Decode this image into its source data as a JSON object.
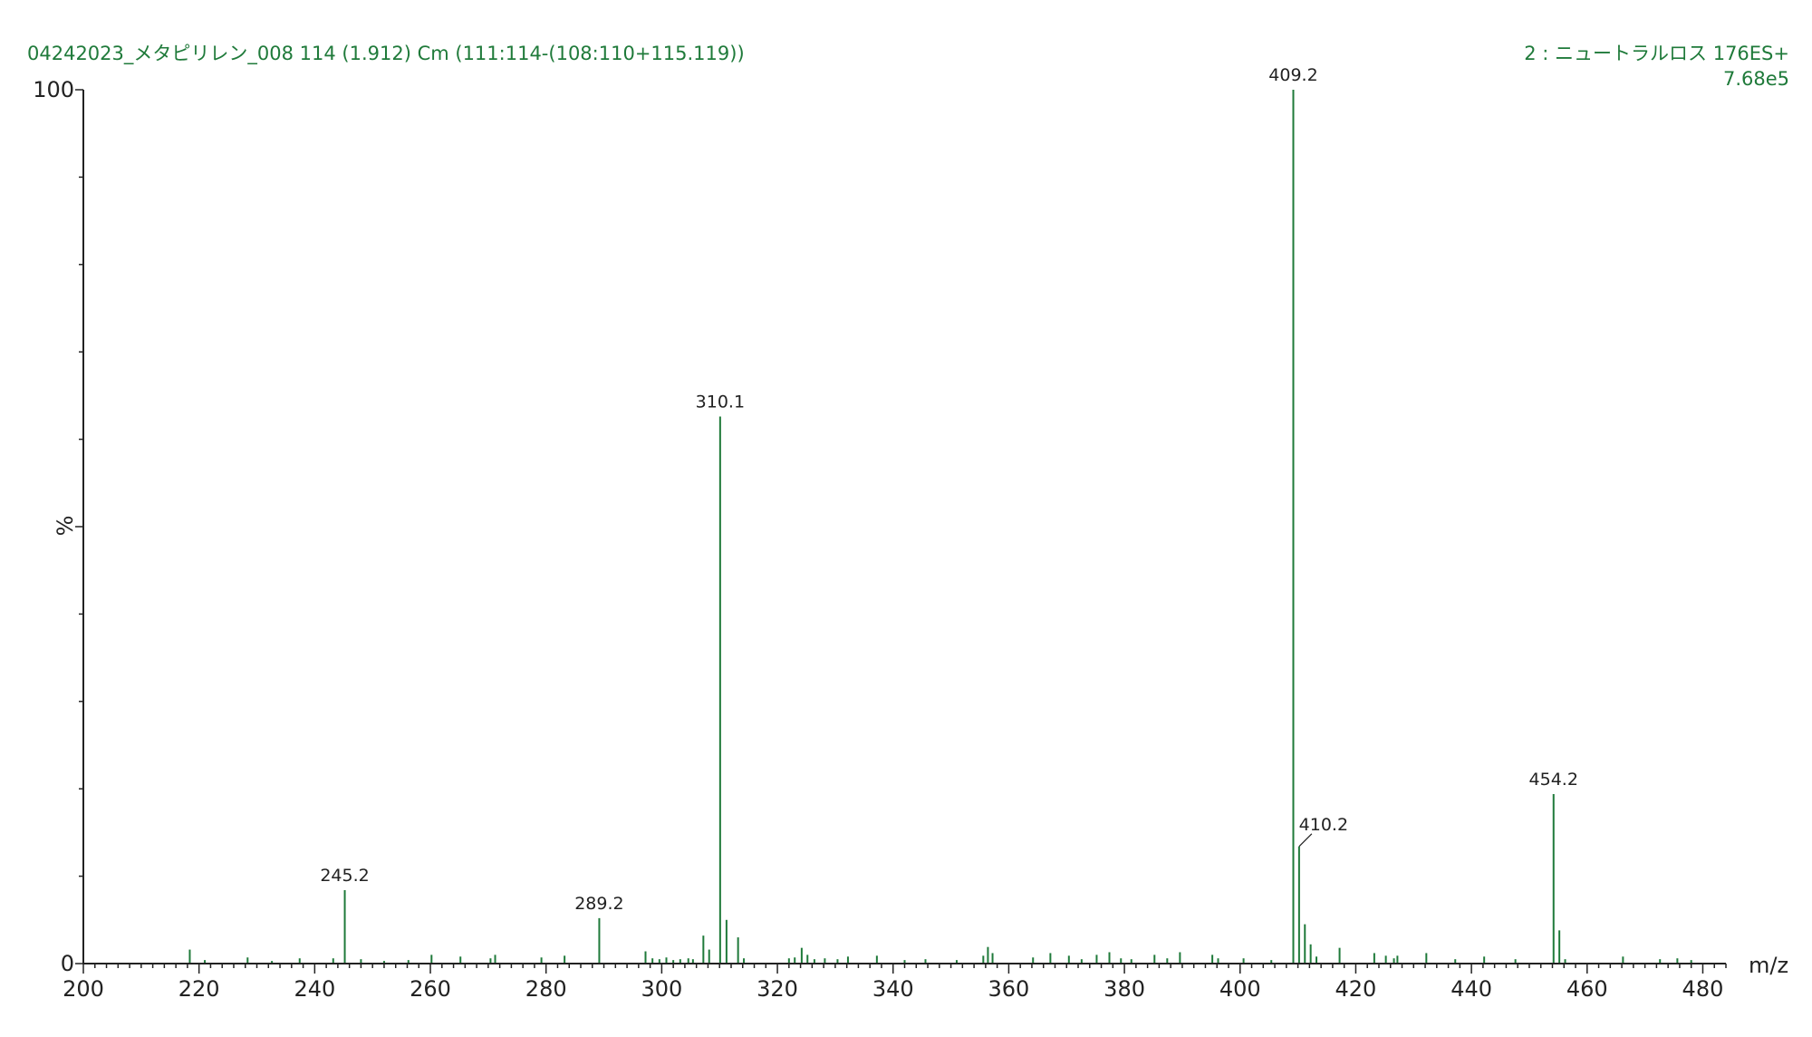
{
  "colors": {
    "trace": "#1f7a3a",
    "axis": "#222222",
    "header": "#1f7a3a"
  },
  "chart_data": {
    "type": "bar",
    "title": "04242023_メタピリレン_008 114 (1.912) Cm (111:114-(108:110+115.119))",
    "function_label": "2 : ニュートラルロス 176ES+",
    "intensity_label": "7.68e5",
    "xlabel": "m/z",
    "ylabel": "%",
    "xlim": [
      200,
      484
    ],
    "ylim": [
      0,
      100
    ],
    "x_ticks": [
      200,
      220,
      240,
      260,
      280,
      300,
      320,
      340,
      360,
      380,
      400,
      420,
      440,
      460,
      480
    ],
    "y_ticks": [
      0,
      100
    ],
    "peaks": [
      {
        "mz": 218.4,
        "rel": 1.6
      },
      {
        "mz": 221.0,
        "rel": 0.4
      },
      {
        "mz": 228.4,
        "rel": 0.7
      },
      {
        "mz": 232.6,
        "rel": 0.3
      },
      {
        "mz": 237.4,
        "rel": 0.6
      },
      {
        "mz": 243.2,
        "rel": 0.6
      },
      {
        "mz": 245.2,
        "rel": 8.4,
        "label": "245.2"
      },
      {
        "mz": 248.0,
        "rel": 0.5
      },
      {
        "mz": 252.0,
        "rel": 0.3
      },
      {
        "mz": 256.2,
        "rel": 0.4
      },
      {
        "mz": 260.2,
        "rel": 1.0
      },
      {
        "mz": 265.2,
        "rel": 0.8
      },
      {
        "mz": 270.4,
        "rel": 0.6
      },
      {
        "mz": 271.2,
        "rel": 1.0
      },
      {
        "mz": 279.2,
        "rel": 0.7
      },
      {
        "mz": 283.2,
        "rel": 0.9
      },
      {
        "mz": 289.2,
        "rel": 5.2,
        "label": "289.2"
      },
      {
        "mz": 297.2,
        "rel": 1.4
      },
      {
        "mz": 298.4,
        "rel": 0.6
      },
      {
        "mz": 299.6,
        "rel": 0.5
      },
      {
        "mz": 300.8,
        "rel": 0.7
      },
      {
        "mz": 302.0,
        "rel": 0.4
      },
      {
        "mz": 303.2,
        "rel": 0.5
      },
      {
        "mz": 304.6,
        "rel": 0.6
      },
      {
        "mz": 305.4,
        "rel": 0.5
      },
      {
        "mz": 307.2,
        "rel": 3.2
      },
      {
        "mz": 308.2,
        "rel": 1.6
      },
      {
        "mz": 310.1,
        "rel": 62.6,
        "label": "310.1"
      },
      {
        "mz": 311.2,
        "rel": 5.0
      },
      {
        "mz": 313.2,
        "rel": 3.0
      },
      {
        "mz": 314.2,
        "rel": 0.6
      },
      {
        "mz": 322.0,
        "rel": 0.6
      },
      {
        "mz": 323.0,
        "rel": 0.7
      },
      {
        "mz": 324.2,
        "rel": 1.8
      },
      {
        "mz": 325.2,
        "rel": 1.0
      },
      {
        "mz": 326.4,
        "rel": 0.5
      },
      {
        "mz": 328.2,
        "rel": 0.6
      },
      {
        "mz": 330.4,
        "rel": 0.5
      },
      {
        "mz": 332.2,
        "rel": 0.8
      },
      {
        "mz": 337.2,
        "rel": 0.9
      },
      {
        "mz": 342.0,
        "rel": 0.4
      },
      {
        "mz": 345.6,
        "rel": 0.5
      },
      {
        "mz": 351.0,
        "rel": 0.4
      },
      {
        "mz": 355.6,
        "rel": 0.9
      },
      {
        "mz": 356.4,
        "rel": 1.9
      },
      {
        "mz": 357.2,
        "rel": 1.2
      },
      {
        "mz": 364.2,
        "rel": 0.7
      },
      {
        "mz": 367.2,
        "rel": 1.2
      },
      {
        "mz": 370.4,
        "rel": 0.9
      },
      {
        "mz": 372.6,
        "rel": 0.5
      },
      {
        "mz": 375.2,
        "rel": 1.0
      },
      {
        "mz": 377.4,
        "rel": 1.3
      },
      {
        "mz": 379.4,
        "rel": 0.6
      },
      {
        "mz": 381.2,
        "rel": 0.5
      },
      {
        "mz": 385.2,
        "rel": 1.0
      },
      {
        "mz": 387.4,
        "rel": 0.6
      },
      {
        "mz": 389.6,
        "rel": 1.3
      },
      {
        "mz": 395.2,
        "rel": 1.0
      },
      {
        "mz": 396.2,
        "rel": 0.6
      },
      {
        "mz": 400.6,
        "rel": 0.6
      },
      {
        "mz": 405.4,
        "rel": 0.4
      },
      {
        "mz": 409.2,
        "rel": 100,
        "label": "409.2"
      },
      {
        "mz": 410.2,
        "rel": 13.4,
        "label": "410.2"
      },
      {
        "mz": 411.2,
        "rel": 4.5
      },
      {
        "mz": 412.2,
        "rel": 2.2
      },
      {
        "mz": 413.2,
        "rel": 0.8
      },
      {
        "mz": 417.2,
        "rel": 1.8
      },
      {
        "mz": 423.2,
        "rel": 1.2
      },
      {
        "mz": 425.2,
        "rel": 0.9
      },
      {
        "mz": 426.6,
        "rel": 0.6
      },
      {
        "mz": 427.2,
        "rel": 0.9
      },
      {
        "mz": 432.2,
        "rel": 1.2
      },
      {
        "mz": 437.2,
        "rel": 0.5
      },
      {
        "mz": 442.2,
        "rel": 0.8
      },
      {
        "mz": 447.6,
        "rel": 0.5
      },
      {
        "mz": 454.2,
        "rel": 19.4,
        "label": "454.2"
      },
      {
        "mz": 455.2,
        "rel": 3.8
      },
      {
        "mz": 456.2,
        "rel": 0.5
      },
      {
        "mz": 466.2,
        "rel": 0.8
      },
      {
        "mz": 472.6,
        "rel": 0.5
      },
      {
        "mz": 475.6,
        "rel": 0.6
      },
      {
        "mz": 478.0,
        "rel": 0.4
      }
    ]
  }
}
